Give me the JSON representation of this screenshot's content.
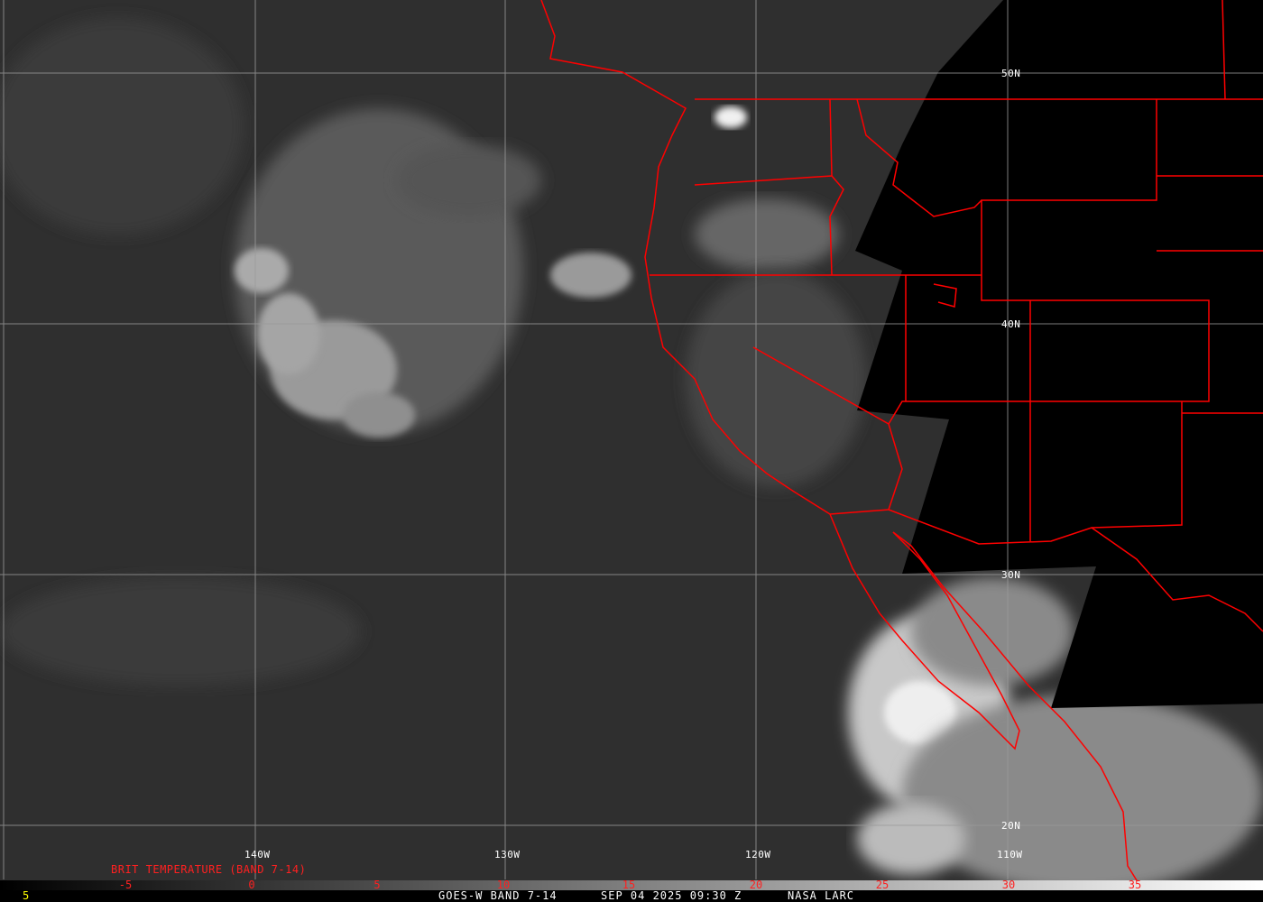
{
  "title": "GOES-W BAND 7-14",
  "footer": {
    "left_value": "5",
    "product": "GOES-W BAND 7-14",
    "datetime": "SEP 04 2025 09:30 Z",
    "source": "NASA LARC"
  },
  "colorbar": {
    "label": "BRIT TEMPERATURE (BAND 7-14)",
    "ticks": [
      "-5",
      "0",
      "5",
      "10",
      "15",
      "20",
      "25",
      "30",
      "35"
    ],
    "tick_color": "#ff2020"
  },
  "grid": {
    "longitudes": [
      "140W",
      "130W",
      "120W",
      "110W"
    ],
    "latitudes": [
      "50N",
      "40N",
      "30N",
      "20N"
    ]
  },
  "colors": {
    "borders": "#ff0000",
    "grid": "#9a9a9a",
    "no_data": "#000000",
    "label_footer_left": "#ffff00"
  }
}
